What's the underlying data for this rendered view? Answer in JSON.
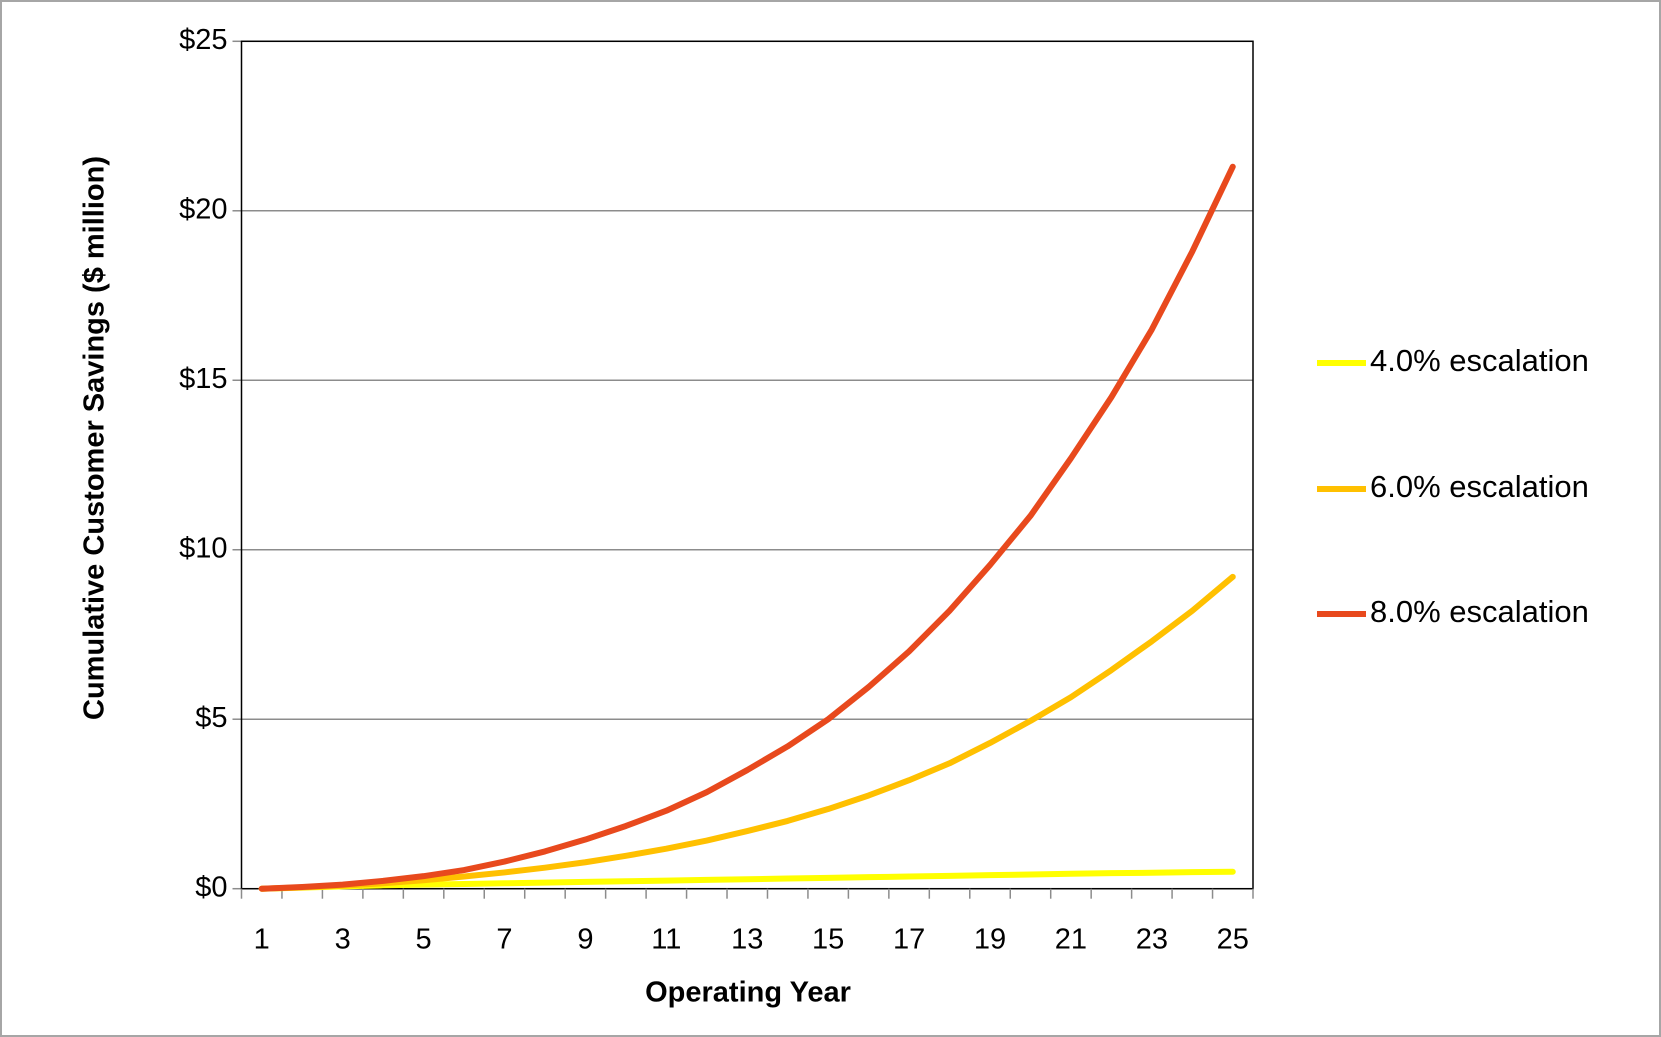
{
  "chart_data": {
    "type": "line",
    "xlabel": "Operating Year",
    "ylabel": "Cumulative Customer Savings ($ million)",
    "categories": [
      1,
      null,
      3,
      null,
      5,
      null,
      7,
      null,
      9,
      null,
      11,
      null,
      13,
      null,
      15,
      null,
      17,
      null,
      19,
      null,
      21,
      null,
      23,
      null,
      25
    ],
    "series": [
      {
        "name": "4.0% escalation",
        "color": "#ffff00",
        "values": [
          0,
          0.03,
          0.07,
          0.1,
          0.12,
          0.14,
          0.16,
          0.18,
          0.2,
          0.22,
          0.24,
          0.26,
          0.28,
          0.3,
          0.32,
          0.34,
          0.36,
          0.38,
          0.4,
          0.42,
          0.44,
          0.46,
          0.47,
          0.49,
          0.5
        ]
      },
      {
        "name": "6.0% escalation",
        "color": "#ffc000",
        "values": [
          0,
          0.04,
          0.09,
          0.16,
          0.25,
          0.36,
          0.48,
          0.62,
          0.78,
          0.97,
          1.18,
          1.42,
          1.7,
          2.0,
          2.35,
          2.75,
          3.2,
          3.7,
          4.3,
          4.95,
          5.65,
          6.45,
          7.3,
          8.2,
          9.2
        ]
      },
      {
        "name": "8.0% escalation",
        "color": "#e8491d",
        "values": [
          0,
          0.05,
          0.12,
          0.23,
          0.37,
          0.55,
          0.8,
          1.1,
          1.45,
          1.85,
          2.3,
          2.85,
          3.5,
          4.2,
          5.0,
          5.95,
          7.0,
          8.2,
          9.55,
          11.0,
          12.7,
          14.5,
          16.5,
          18.8,
          21.3
        ]
      }
    ],
    "ylim": [
      0,
      25
    ],
    "yticks": [
      {
        "value": 0,
        "label": "$0"
      },
      {
        "value": 5,
        "label": "$5"
      },
      {
        "value": 10,
        "label": "$10"
      },
      {
        "value": 15,
        "label": "$15"
      },
      {
        "value": 20,
        "label": "$20"
      },
      {
        "value": 25,
        "label": "$25"
      }
    ],
    "grid": true,
    "legend": "right"
  }
}
